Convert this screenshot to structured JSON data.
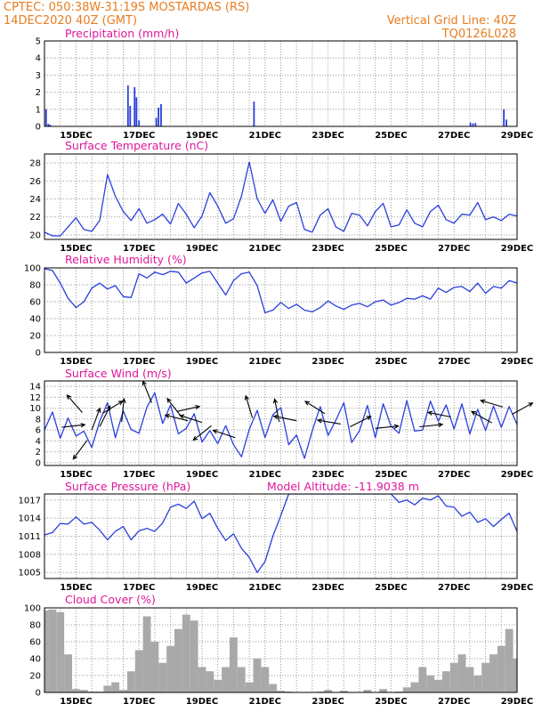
{
  "header": {
    "line1": "CPTEC:   050:38W-31:19S   MOSTARDAS (RS)",
    "line2": "14DEC2020 40Z (GMT)",
    "grid_note": "Vertical Grid Line: 40Z",
    "code": "TQ0126L028"
  },
  "colors": {
    "header": "#e87d1e",
    "panel_title": "#e0179a",
    "series": "#2a3fdc",
    "cloud": "#a9a9a9",
    "grid": "#9a9a9a",
    "arrow": "#000000"
  },
  "chart_data": [
    {
      "id": "precip",
      "type": "bar",
      "title": "Precipitation  (mm/h)",
      "ylim": [
        0,
        5
      ],
      "yticks": [
        0,
        1,
        2,
        3,
        4,
        5
      ],
      "xlim_days": [
        0,
        15
      ],
      "xtick_labels": [
        "15DEC",
        "17DEC",
        "19DEC",
        "21DEC",
        "23DEC",
        "25DEC",
        "27DEC",
        "29DEC"
      ],
      "points": [
        [
          0.05,
          1.0
        ],
        [
          0.12,
          0.15
        ],
        [
          0.18,
          0.1
        ],
        [
          2.65,
          2.4
        ],
        [
          2.72,
          1.2
        ],
        [
          2.86,
          2.3
        ],
        [
          2.92,
          1.7
        ],
        [
          3.0,
          0.35
        ],
        [
          3.55,
          0.5
        ],
        [
          3.62,
          1.1
        ],
        [
          3.7,
          1.3
        ],
        [
          6.65,
          1.45
        ],
        [
          13.52,
          0.22
        ],
        [
          13.6,
          0.18
        ],
        [
          13.68,
          0.2
        ],
        [
          14.58,
          1.0
        ],
        [
          14.66,
          0.4
        ]
      ]
    },
    {
      "id": "temperature",
      "type": "line",
      "title": "Surface Temperature (nC)",
      "ylim": [
        19.5,
        29
      ],
      "yticks": [
        20,
        22,
        24,
        26,
        28
      ],
      "xlim_days": [
        0,
        15
      ],
      "xtick_labels": [
        "15DEC",
        "17DEC",
        "19DEC",
        "21DEC",
        "23DEC",
        "25DEC",
        "27DEC",
        "29DEC"
      ],
      "x": [
        0.0,
        0.25,
        0.5,
        0.75,
        1.0,
        1.25,
        1.5,
        1.75,
        2.0,
        2.25,
        2.5,
        2.75,
        3.0,
        3.25,
        3.5,
        3.75,
        4.0,
        4.25,
        4.5,
        4.75,
        5.0,
        5.25,
        5.5,
        5.75,
        6.0,
        6.25,
        6.5,
        6.75,
        7.0,
        7.25,
        7.5,
        7.75,
        8.0,
        8.25,
        8.5,
        8.75,
        9.0,
        9.25,
        9.5,
        9.75,
        10.0,
        10.25,
        10.5,
        10.75,
        11.0,
        11.25,
        11.5,
        11.75,
        12.0,
        12.25,
        12.5,
        12.75,
        13.0,
        13.25,
        13.5,
        13.75,
        14.0,
        14.25,
        14.5,
        14.75,
        15.0
      ],
      "values": [
        20.3,
        19.9,
        19.9,
        20.9,
        21.9,
        20.6,
        20.4,
        21.6,
        26.7,
        24.3,
        22.6,
        21.6,
        22.9,
        21.3,
        21.7,
        22.3,
        21.2,
        23.5,
        22.3,
        20.8,
        22.1,
        24.7,
        23.2,
        21.3,
        21.8,
        24.3,
        28.1,
        24.0,
        22.4,
        23.9,
        21.5,
        23.2,
        23.6,
        20.6,
        20.3,
        22.2,
        22.9,
        20.9,
        20.4,
        22.4,
        22.2,
        21.0,
        22.6,
        23.5,
        20.9,
        21.1,
        22.8,
        21.3,
        20.9,
        22.6,
        23.3,
        21.7,
        21.3,
        22.3,
        22.2,
        23.6,
        21.7,
        22.0,
        21.6,
        22.3,
        22.1
      ]
    },
    {
      "id": "humidity",
      "type": "line",
      "title": "Relative Humidity (%)",
      "ylim": [
        0,
        100
      ],
      "yticks": [
        0,
        20,
        40,
        60,
        80,
        100
      ],
      "xlim_days": [
        0,
        15
      ],
      "xtick_labels": [
        "15DEC",
        "17DEC",
        "19DEC",
        "21DEC",
        "23DEC",
        "25DEC",
        "27DEC",
        "29DEC"
      ],
      "x": [
        0.0,
        0.25,
        0.5,
        0.75,
        1.0,
        1.25,
        1.5,
        1.75,
        2.0,
        2.25,
        2.5,
        2.75,
        3.0,
        3.25,
        3.5,
        3.75,
        4.0,
        4.25,
        4.5,
        4.75,
        5.0,
        5.25,
        5.5,
        5.75,
        6.0,
        6.25,
        6.5,
        6.75,
        7.0,
        7.25,
        7.5,
        7.75,
        8.0,
        8.25,
        8.5,
        8.75,
        9.0,
        9.25,
        9.5,
        9.75,
        10.0,
        10.25,
        10.5,
        10.75,
        11.0,
        11.25,
        11.5,
        11.75,
        12.0,
        12.25,
        12.5,
        12.75,
        13.0,
        13.25,
        13.5,
        13.75,
        14.0,
        14.25,
        14.5,
        14.75,
        15.0
      ],
      "values": [
        99,
        97,
        82,
        64,
        53,
        60,
        76,
        82,
        75,
        79,
        66,
        65,
        93,
        88,
        95,
        92,
        96,
        95,
        82,
        88,
        94,
        96,
        82,
        68,
        85,
        93,
        95,
        79,
        47,
        50,
        59,
        52,
        57,
        50,
        48,
        53,
        61,
        55,
        51,
        56,
        58,
        54,
        60,
        62,
        56,
        59,
        64,
        63,
        67,
        63,
        76,
        71,
        77,
        78,
        72,
        82,
        70,
        78,
        76,
        85,
        82
      ]
    },
    {
      "id": "wind",
      "type": "line",
      "title": "Surface Wind (m/s)",
      "ylim": [
        -0.5,
        15
      ],
      "yticks": [
        0,
        2,
        4,
        6,
        8,
        10,
        12,
        14
      ],
      "xlim_days": [
        0,
        15
      ],
      "xtick_labels": [
        "15DEC",
        "17DEC",
        "19DEC",
        "21DEC",
        "23DEC",
        "25DEC",
        "27DEC",
        "29DEC"
      ],
      "x": [
        0.0,
        0.25,
        0.5,
        0.75,
        1.0,
        1.25,
        1.5,
        1.75,
        2.0,
        2.25,
        2.5,
        2.75,
        3.0,
        3.25,
        3.5,
        3.75,
        4.0,
        4.25,
        4.5,
        4.75,
        5.0,
        5.25,
        5.5,
        5.75,
        6.0,
        6.25,
        6.5,
        6.75,
        7.0,
        7.25,
        7.5,
        7.75,
        8.0,
        8.25,
        8.5,
        8.75,
        9.0,
        9.25,
        9.5,
        9.75,
        10.0,
        10.25,
        10.5,
        10.75,
        11.0,
        11.25,
        11.5,
        11.75,
        12.0,
        12.25,
        12.5,
        12.75,
        13.0,
        13.25,
        13.5,
        13.75,
        14.0,
        14.25,
        14.5,
        14.75,
        15.0
      ],
      "values": [
        6.0,
        9.3,
        4.5,
        8.2,
        4.9,
        5.8,
        2.8,
        7.6,
        11.0,
        4.6,
        9.5,
        6.1,
        5.4,
        10.2,
        12.8,
        7.2,
        10.6,
        5.3,
        6.3,
        9.0,
        3.8,
        5.9,
        3.5,
        6.8,
        3.3,
        1.1,
        6.1,
        9.6,
        4.6,
        8.8,
        10.1,
        3.3,
        5.1,
        0.8,
        5.9,
        10.3,
        5.0,
        7.8,
        11.0,
        3.7,
        5.9,
        10.5,
        4.6,
        10.8,
        6.7,
        5.4,
        11.4,
        5.8,
        6.0,
        11.3,
        7.6,
        10.6,
        6.2,
        10.8,
        5.3,
        9.8,
        5.9,
        10.4,
        6.5,
        10.3,
        7.0
      ],
      "vectors": [
        [
          0.55,
          6.5,
          0.9,
          0.1
        ],
        [
          1.2,
          9.2,
          -0.7,
          0.8
        ],
        [
          1.35,
          4.1,
          -0.7,
          -0.95
        ],
        [
          1.5,
          6.0,
          0.3,
          0.8
        ],
        [
          1.75,
          6.6,
          0.5,
          1.0
        ],
        [
          1.85,
          9.1,
          1.0,
          0.6
        ],
        [
          2.45,
          7.5,
          0.1,
          1.0
        ],
        [
          3.4,
          11.0,
          -0.4,
          1.0
        ],
        [
          4.2,
          9.4,
          0.9,
          0.2
        ],
        [
          4.35,
          8.4,
          -0.7,
          0.9
        ],
        [
          4.55,
          7.7,
          -1.0,
          0.25
        ],
        [
          5.0,
          7.4,
          -0.8,
          0.25
        ],
        [
          5.3,
          6.8,
          -0.5,
          -0.4
        ],
        [
          6.05,
          4.6,
          -0.9,
          0.3
        ],
        [
          6.6,
          8.2,
          -0.3,
          1.0
        ],
        [
          7.45,
          7.5,
          -0.2,
          1.0
        ],
        [
          8.0,
          7.7,
          -1.0,
          0.2
        ],
        [
          8.9,
          9.0,
          -0.8,
          0.5
        ],
        [
          9.4,
          7.1,
          -0.9,
          0.15
        ],
        [
          9.7,
          6.6,
          0.9,
          0.45
        ],
        [
          10.5,
          6.3,
          1.0,
          0.1
        ],
        [
          11.9,
          6.6,
          1.0,
          0.1
        ],
        [
          12.9,
          8.4,
          -1.0,
          0.2
        ],
        [
          14.2,
          7.3,
          -0.8,
          0.45
        ],
        [
          14.55,
          10.2,
          -1.0,
          0.3
        ],
        [
          14.85,
          8.9,
          0.9,
          0.5
        ]
      ]
    },
    {
      "id": "pressure",
      "type": "line",
      "title": "Surface Pressure (hPa)",
      "subtitle": "Model Altitude: -11.9038 m",
      "ylim": [
        1004,
        1018
      ],
      "yticks": [
        1005,
        1008,
        1011,
        1014,
        1017
      ],
      "xlim_days": [
        0,
        15
      ],
      "xtick_labels": [
        "15DEC",
        "17DEC",
        "19DEC",
        "21DEC",
        "23DEC",
        "25DEC",
        "27DEC",
        "29DEC"
      ],
      "x": [
        0.0,
        0.25,
        0.5,
        0.75,
        1.0,
        1.25,
        1.5,
        1.75,
        2.0,
        2.25,
        2.5,
        2.75,
        3.0,
        3.25,
        3.5,
        3.75,
        4.0,
        4.25,
        4.5,
        4.75,
        5.0,
        5.25,
        5.5,
        5.75,
        6.0,
        6.25,
        6.5,
        6.75,
        7.0,
        7.25,
        7.5,
        7.75,
        8.0,
        8.25,
        8.5,
        8.75,
        9.0,
        9.25,
        9.5,
        9.75,
        10.0,
        10.25,
        10.5,
        10.75,
        11.0,
        11.25,
        11.5,
        11.75,
        12.0,
        12.25,
        12.5,
        12.75,
        13.0,
        13.25,
        13.5,
        13.75,
        14.0,
        14.25,
        14.5,
        14.75,
        15.0
      ],
      "values": [
        1011.2,
        1011.6,
        1013.1,
        1013.0,
        1014.2,
        1013.0,
        1013.3,
        1012.0,
        1010.4,
        1011.8,
        1012.6,
        1010.4,
        1011.9,
        1012.3,
        1011.8,
        1013.2,
        1015.8,
        1016.3,
        1015.6,
        1016.8,
        1013.9,
        1014.8,
        1012.3,
        1010.3,
        1011.4,
        1009.0,
        1007.5,
        1005.0,
        1006.8,
        1011.0,
        1014.4,
        1018.0,
        1018.0,
        1018.0,
        1018.0,
        1018.0,
        1018.0,
        1018.0,
        1018.0,
        1018.0,
        1018.0,
        1018.0,
        1018.0,
        1018.0,
        1018.0,
        1016.6,
        1017.0,
        1016.2,
        1017.3,
        1017.0,
        1017.7,
        1016.0,
        1015.8,
        1014.3,
        1015.0,
        1013.3,
        1013.9,
        1012.6,
        1013.8,
        1014.8,
        1011.8
      ]
    },
    {
      "id": "cloud",
      "type": "bar",
      "title": "Cloud Cover (%)",
      "ylim": [
        0,
        100
      ],
      "yticks": [
        0,
        20,
        40,
        60,
        80,
        100
      ],
      "xlim_days": [
        0,
        15
      ],
      "xtick_labels": [
        "15DEC",
        "17DEC",
        "19DEC",
        "21DEC",
        "23DEC",
        "25DEC",
        "27DEC",
        "29DEC"
      ],
      "x": [
        0.0,
        0.25,
        0.5,
        0.75,
        1.0,
        1.25,
        1.5,
        1.75,
        2.0,
        2.25,
        2.5,
        2.75,
        3.0,
        3.25,
        3.5,
        3.75,
        4.0,
        4.25,
        4.5,
        4.75,
        5.0,
        5.25,
        5.5,
        5.75,
        6.0,
        6.25,
        6.5,
        6.75,
        7.0,
        7.25,
        7.5,
        7.75,
        8.0,
        8.25,
        8.5,
        8.75,
        9.0,
        9.25,
        9.5,
        9.75,
        10.0,
        10.25,
        10.5,
        10.75,
        11.0,
        11.25,
        11.5,
        11.75,
        12.0,
        12.25,
        12.5,
        12.75,
        13.0,
        13.25,
        13.5,
        13.75,
        14.0,
        14.25,
        14.5,
        14.75,
        15.0
      ],
      "values": [
        97,
        98,
        95,
        45,
        4,
        3,
        1,
        1,
        8,
        12,
        3,
        25,
        50,
        90,
        60,
        35,
        55,
        75,
        92,
        85,
        30,
        25,
        15,
        30,
        65,
        30,
        12,
        40,
        30,
        10,
        2,
        1,
        0,
        0,
        0,
        1,
        3,
        0,
        2,
        0,
        0,
        3,
        0,
        4,
        0,
        1,
        6,
        12,
        30,
        20,
        15,
        25,
        35,
        45,
        30,
        20,
        35,
        45,
        55,
        75,
        40
      ]
    }
  ]
}
